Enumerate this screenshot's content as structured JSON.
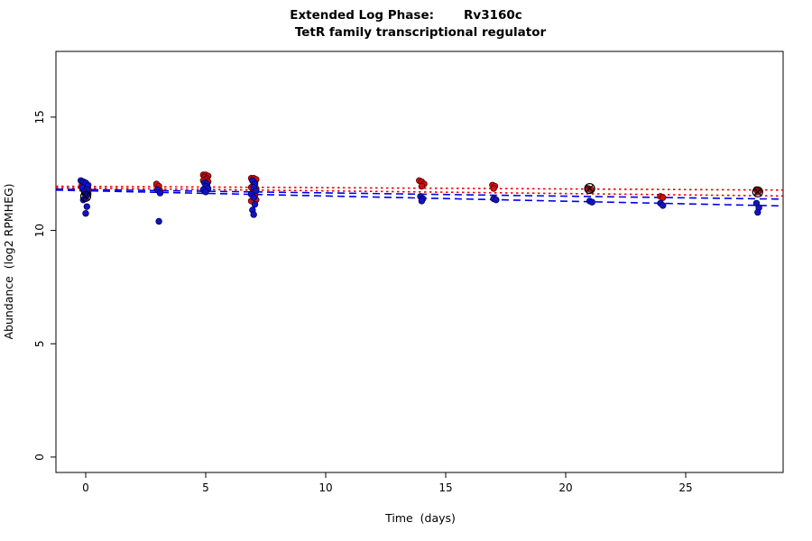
{
  "chart_data": {
    "type": "scatter",
    "title_phase": "Extended Log Phase:",
    "title_gene": "Rv3160c",
    "subtitle": "TetR family transcriptional regulator",
    "xlabel": "Time  (days)",
    "ylabel": "Abundance  (log2 RPMHEG)",
    "axes": {
      "xlim": [
        -1.24,
        29.06
      ],
      "ylim": [
        -0.68,
        17.9
      ],
      "xticks": [
        0,
        5,
        10,
        15,
        20,
        25
      ],
      "yticks": [
        0,
        5,
        10,
        15
      ],
      "grid": false,
      "legend": "none"
    },
    "colors": {
      "red_fill": "#cc1111",
      "red_edge": "#5e0000",
      "blue_fill": "#1313c4",
      "blue_edge": "#000060",
      "red_line": "#ee0000",
      "blue_line": "#0000ee",
      "marker_edge": "#000000",
      "box": "#000000"
    },
    "series": [
      {
        "name": "red-condition",
        "color_key": "red",
        "points": [
          [
            -0.15,
            12.0
          ],
          [
            -0.05,
            11.95
          ],
          [
            0.05,
            11.9
          ],
          [
            0.1,
            11.85
          ],
          [
            -0.1,
            11.8
          ],
          [
            0.0,
            11.75
          ],
          [
            0.1,
            11.7
          ],
          [
            -0.05,
            11.65
          ],
          [
            0.05,
            11.55
          ],
          [
            0.0,
            11.45
          ],
          [
            2.95,
            12.05
          ],
          [
            3.05,
            11.95
          ],
          [
            3.0,
            11.8
          ],
          [
            3.1,
            11.75
          ],
          [
            4.9,
            12.45
          ],
          [
            5.0,
            12.45
          ],
          [
            5.1,
            12.4
          ],
          [
            4.95,
            12.35
          ],
          [
            5.05,
            12.3
          ],
          [
            5.0,
            12.25
          ],
          [
            4.9,
            12.2
          ],
          [
            5.1,
            12.15
          ],
          [
            5.0,
            12.1
          ],
          [
            5.05,
            12.0
          ],
          [
            6.9,
            12.3
          ],
          [
            7.0,
            12.3
          ],
          [
            7.1,
            12.25
          ],
          [
            6.95,
            12.2
          ],
          [
            7.05,
            12.1
          ],
          [
            7.0,
            12.0
          ],
          [
            6.9,
            11.9
          ],
          [
            7.1,
            11.85
          ],
          [
            7.0,
            11.75
          ],
          [
            6.95,
            11.65
          ],
          [
            7.05,
            11.55
          ],
          [
            7.0,
            11.45
          ],
          [
            7.1,
            11.35
          ],
          [
            6.9,
            11.3
          ],
          [
            13.9,
            12.2
          ],
          [
            14.0,
            12.15
          ],
          [
            14.1,
            12.05
          ],
          [
            14.0,
            11.95
          ],
          [
            16.95,
            12.0
          ],
          [
            17.05,
            11.95
          ],
          [
            17.0,
            11.85
          ],
          [
            20.95,
            11.85
          ],
          [
            21.05,
            11.8
          ],
          [
            23.95,
            11.5
          ],
          [
            24.05,
            11.45
          ],
          [
            27.95,
            11.8
          ],
          [
            28.05,
            11.75
          ],
          [
            28.0,
            11.7
          ]
        ]
      },
      {
        "name": "blue-condition",
        "color_key": "blue",
        "points": [
          [
            -0.2,
            12.2
          ],
          [
            -0.1,
            12.15
          ],
          [
            0.0,
            12.1
          ],
          [
            0.1,
            12.0
          ],
          [
            -0.15,
            11.9
          ],
          [
            0.05,
            11.8
          ],
          [
            -0.05,
            11.7
          ],
          [
            0.1,
            11.6
          ],
          [
            0.0,
            11.5
          ],
          [
            -0.1,
            11.35
          ],
          [
            0.05,
            11.05
          ],
          [
            0.0,
            10.75
          ],
          [
            3.0,
            11.8
          ],
          [
            3.1,
            11.65
          ],
          [
            3.05,
            10.4
          ],
          [
            4.95,
            12.1
          ],
          [
            5.05,
            12.05
          ],
          [
            5.0,
            11.95
          ],
          [
            5.1,
            11.85
          ],
          [
            4.9,
            11.8
          ],
          [
            5.0,
            11.7
          ],
          [
            6.95,
            12.2
          ],
          [
            7.05,
            12.05
          ],
          [
            7.0,
            11.9
          ],
          [
            7.1,
            11.75
          ],
          [
            6.9,
            11.6
          ],
          [
            7.0,
            11.45
          ],
          [
            7.05,
            11.15
          ],
          [
            6.95,
            10.9
          ],
          [
            7.0,
            10.7
          ],
          [
            13.95,
            11.5
          ],
          [
            14.05,
            11.4
          ],
          [
            14.0,
            11.3
          ],
          [
            17.0,
            11.4
          ],
          [
            17.1,
            11.35
          ],
          [
            21.0,
            11.3
          ],
          [
            21.1,
            11.25
          ],
          [
            23.95,
            11.2
          ],
          [
            24.05,
            11.1
          ],
          [
            27.95,
            11.2
          ],
          [
            28.05,
            11.0
          ],
          [
            28.0,
            10.8
          ]
        ]
      }
    ],
    "circled_points": [
      [
        0.0,
        11.5
      ],
      [
        21.0,
        11.85
      ],
      [
        28.0,
        11.7
      ]
    ],
    "trend_lines": [
      {
        "color_key": "red",
        "style": "dotted",
        "x0": -1.24,
        "y0": 11.95,
        "x1": 29.06,
        "y1": 11.78
      },
      {
        "color_key": "red",
        "style": "dotted",
        "x0": -1.24,
        "y0": 11.88,
        "x1": 29.06,
        "y1": 11.52
      },
      {
        "color_key": "blue",
        "style": "dashed",
        "x0": -1.24,
        "y0": 11.82,
        "x1": 29.06,
        "y1": 11.38
      },
      {
        "color_key": "blue",
        "style": "dashed",
        "x0": -1.24,
        "y0": 11.78,
        "x1": 29.06,
        "y1": 11.08
      }
    ]
  }
}
